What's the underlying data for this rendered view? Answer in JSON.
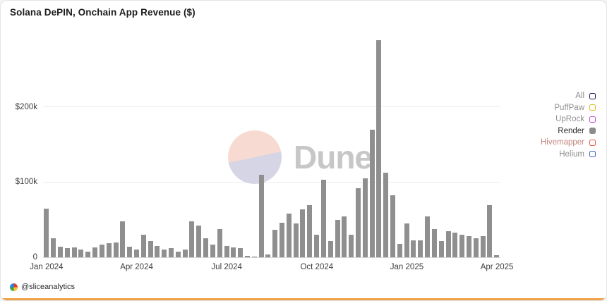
{
  "page": {
    "accent_strip_color": "#efa147"
  },
  "card": {
    "title": "Solana DePIN, Onchain App Revenue ($)",
    "watermark_text": "Dune",
    "attribution": "@sliceanalytics"
  },
  "legend": {
    "items": [
      {
        "label": "All",
        "box_color": "#1c2260",
        "filled": false,
        "text_color": "#8f8f8f"
      },
      {
        "label": "PuffPaw",
        "box_color": "#ddbb22",
        "filled": false,
        "text_color": "#8f8f8f"
      },
      {
        "label": "UpRock",
        "box_color": "#c150d2",
        "filled": false,
        "text_color": "#8f8f8f"
      },
      {
        "label": "Render",
        "box_color": "#8c8c8c",
        "filled": true,
        "text_color": "#2e2e2e"
      },
      {
        "label": "Hivemapper",
        "box_color": "#e2574a",
        "filled": false,
        "text_color": "#c2857d"
      },
      {
        "label": "Helium",
        "box_color": "#3f63d2",
        "filled": false,
        "text_color": "#8f8f8f"
      }
    ]
  },
  "chart_data": {
    "type": "bar",
    "title": "Solana DePIN, Onchain App Revenue ($)",
    "x_frequency": "weekly",
    "x_range": [
      "Jan 2024",
      "Apr 2025"
    ],
    "ylim": [
      0,
      300000
    ],
    "grid": "horizontal",
    "legend_position": "right",
    "yticks": [
      {
        "value": 0,
        "label": "0"
      },
      {
        "value": 100000,
        "label": "$100k"
      },
      {
        "value": 200000,
        "label": "$200k"
      }
    ],
    "xticks": [
      {
        "index": 0,
        "label": "Jan 2024"
      },
      {
        "index": 13,
        "label": "Apr 2024"
      },
      {
        "index": 26,
        "label": "Jul 2024"
      },
      {
        "index": 39,
        "label": "Oct 2024"
      },
      {
        "index": 52,
        "label": "Jan 2025"
      },
      {
        "index": 65,
        "label": "Apr 2025"
      }
    ],
    "series": [
      {
        "name": "Render",
        "color": "#8f8f8f",
        "values": [
          65000,
          25000,
          14000,
          12000,
          13000,
          10000,
          8000,
          13000,
          17000,
          19000,
          20000,
          48000,
          14000,
          10000,
          30000,
          22000,
          15000,
          10000,
          12000,
          8000,
          10000,
          48000,
          42000,
          25000,
          17000,
          38000,
          15000,
          13000,
          12000,
          2000,
          1000,
          110000,
          4000,
          37000,
          46000,
          58000,
          45000,
          64000,
          70000,
          30000,
          103000,
          22000,
          50000,
          55000,
          30000,
          92000,
          105000,
          170000,
          290000,
          113000,
          83000,
          18000,
          45000,
          23000,
          23000,
          55000,
          38000,
          22000,
          35000,
          33000,
          30000,
          28000,
          25000,
          28000,
          70000,
          3000
        ]
      }
    ]
  }
}
